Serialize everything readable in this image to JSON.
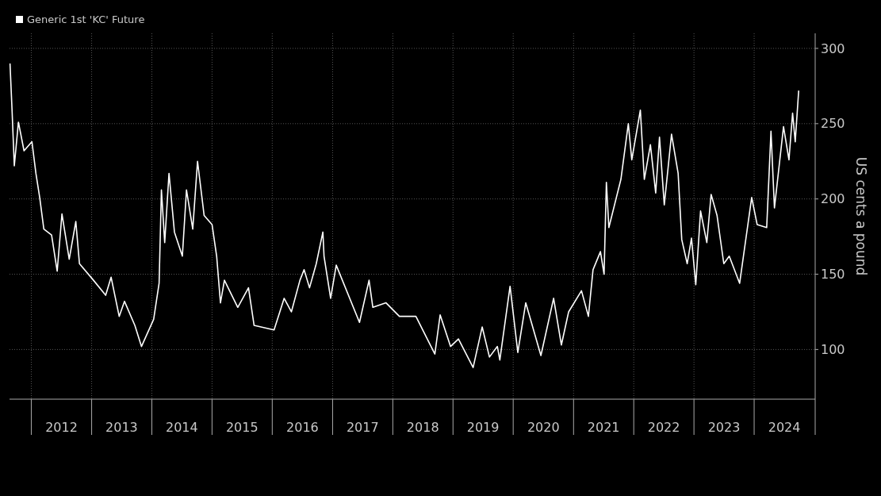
{
  "chart_data": {
    "type": "line",
    "ylabel": "US cents a pound",
    "legend": "top left",
    "grid": true,
    "xlim": [
      "2011-08-22",
      "2025-01-05"
    ],
    "ylim": [
      67,
      310
    ],
    "yticks": [
      100,
      150,
      200,
      250,
      300
    ],
    "xticks": [
      {
        "value": "2012-01-01",
        "label": null
      },
      {
        "value": "2012-07-02",
        "label": "2012"
      },
      {
        "value": "2013-01-01",
        "label": null
      },
      {
        "value": "2013-07-02",
        "label": "2013"
      },
      {
        "value": "2014-01-01",
        "label": null
      },
      {
        "value": "2014-07-02",
        "label": "2014"
      },
      {
        "value": "2015-01-01",
        "label": null
      },
      {
        "value": "2015-07-02",
        "label": "2015"
      },
      {
        "value": "2016-01-01",
        "label": null
      },
      {
        "value": "2016-07-02",
        "label": "2016"
      },
      {
        "value": "2017-01-01",
        "label": null
      },
      {
        "value": "2017-07-02",
        "label": "2017"
      },
      {
        "value": "2018-01-01",
        "label": null
      },
      {
        "value": "2018-07-02",
        "label": "2018"
      },
      {
        "value": "2019-01-01",
        "label": null
      },
      {
        "value": "2019-07-02",
        "label": "2019"
      },
      {
        "value": "2020-01-01",
        "label": null
      },
      {
        "value": "2020-07-02",
        "label": "2020"
      },
      {
        "value": "2021-01-01",
        "label": null
      },
      {
        "value": "2021-07-02",
        "label": "2021"
      },
      {
        "value": "2022-01-01",
        "label": null
      },
      {
        "value": "2022-07-02",
        "label": "2022"
      },
      {
        "value": "2023-01-01",
        "label": null
      },
      {
        "value": "2023-07-02",
        "label": "2023"
      },
      {
        "value": "2024-01-01",
        "label": null
      },
      {
        "value": "2024-07-02",
        "label": "2024"
      }
    ],
    "series": [
      {
        "name": "Generic 1st 'KC' Future",
        "color": "#ffffff",
        "x": [
          "2011-08-25",
          "2011-09-06",
          "2011-09-20",
          "2011-10-15",
          "2011-11-18",
          "2012-01-05",
          "2012-01-29",
          "2012-02-21",
          "2012-03-17",
          "2012-05-03",
          "2012-06-06",
          "2012-07-05",
          "2012-08-18",
          "2012-09-27",
          "2012-10-19",
          "2013-01-12",
          "2013-03-27",
          "2013-04-29",
          "2013-06-17",
          "2013-07-19",
          "2013-09-20",
          "2013-10-30",
          "2014-01-12",
          "2014-02-14",
          "2014-02-28",
          "2014-03-20",
          "2014-04-15",
          "2014-05-18",
          "2014-07-05",
          "2014-07-30",
          "2014-09-06",
          "2014-10-05",
          "2014-11-14",
          "2015-01-01",
          "2015-01-29",
          "2015-02-21",
          "2015-03-17",
          "2015-06-06",
          "2015-08-10",
          "2015-09-13",
          "2016-01-12",
          "2016-03-13",
          "2016-04-26",
          "2016-06-17",
          "2016-07-12",
          "2016-08-14",
          "2016-09-24",
          "2016-11-03",
          "2016-11-10",
          "2016-12-20",
          "2017-01-23",
          "2017-06-13",
          "2017-08-10",
          "2017-09-02",
          "2017-11-21",
          "2018-02-10",
          "2018-05-21",
          "2018-09-13",
          "2018-10-15",
          "2018-12-17",
          "2019-02-03",
          "2019-05-03",
          "2019-06-27",
          "2019-08-10",
          "2019-09-27",
          "2019-10-12",
          "2019-12-13",
          "2020-01-29",
          "2020-03-17",
          "2020-06-17",
          "2020-09-02",
          "2020-10-19",
          "2020-12-02",
          "2021-02-18",
          "2021-04-01",
          "2021-04-29",
          "2021-06-13",
          "2021-07-05",
          "2021-07-19",
          "2021-08-03",
          "2021-10-15",
          "2021-11-29",
          "2021-12-20",
          "2022-02-10",
          "2022-03-06",
          "2022-04-12",
          "2022-05-14",
          "2022-06-06",
          "2022-07-05",
          "2022-08-18",
          "2022-09-27",
          "2022-10-19",
          "2022-11-21",
          "2022-12-17",
          "2023-01-12",
          "2023-02-10",
          "2023-03-20",
          "2023-04-15",
          "2023-05-21",
          "2023-07-01",
          "2023-08-03",
          "2023-10-05",
          "2023-12-17",
          "2024-01-19",
          "2024-03-17",
          "2024-04-12",
          "2024-05-03",
          "2024-06-27",
          "2024-07-30",
          "2024-08-21",
          "2024-09-06",
          "2024-09-27"
        ],
        "values": [
          290,
          260,
          222,
          251,
          232,
          238,
          217,
          201,
          180,
          176,
          152,
          190,
          160,
          185,
          157,
          146,
          136,
          148,
          122,
          132,
          116,
          102,
          120,
          144,
          206,
          171,
          217,
          178,
          162,
          206,
          180,
          225,
          189,
          183,
          162,
          131,
          146,
          128,
          141,
          116,
          113,
          134,
          125,
          146,
          153,
          141,
          157,
          178,
          162,
          134,
          156,
          118,
          146,
          128,
          131,
          122,
          122,
          97,
          123,
          102,
          107,
          88,
          115,
          95,
          102,
          93,
          142,
          98,
          131,
          96,
          134,
          103,
          125,
          139,
          122,
          153,
          165,
          150,
          211,
          181,
          213,
          250,
          226,
          259,
          213,
          236,
          204,
          241,
          196,
          243,
          217,
          173,
          157,
          174,
          143,
          192,
          171,
          203,
          189,
          157,
          162,
          144,
          201,
          183,
          181,
          245,
          194,
          248,
          226,
          257,
          238,
          272
        ]
      }
    ]
  }
}
